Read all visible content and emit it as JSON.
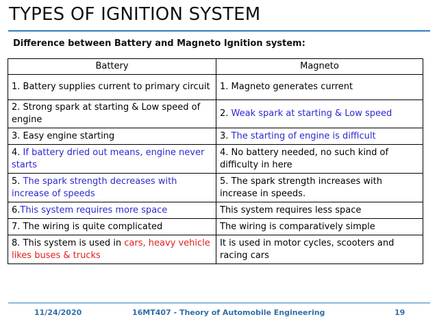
{
  "slide": {
    "title": "TYPES OF IGNITION SYSTEM",
    "subtitle": "Difference between Battery and Magneto Ignition system:"
  },
  "table": {
    "headers": [
      "Battery",
      "Magneto"
    ],
    "rows": [
      {
        "battery": [
          {
            "text": "1. Battery supplies current to primary circuit"
          }
        ],
        "magneto": [
          {
            "text": "1. Magneto generates current"
          }
        ]
      },
      {
        "battery": [
          {
            "text": "2. Strong spark at starting & Low speed of engine"
          }
        ],
        "magneto": [
          {
            "text": "2. "
          },
          {
            "text": "Weak spark at starting & Low speed",
            "color": "blue"
          }
        ]
      },
      {
        "battery": [
          {
            "text": "3. Easy engine starting"
          }
        ],
        "magneto": [
          {
            "text": "3. "
          },
          {
            "text": "The starting of engine is difficult",
            "color": "blue"
          }
        ]
      },
      {
        "battery": [
          {
            "text": "4. "
          },
          {
            "text": "If battery dried out means, engine never starts",
            "color": "blue"
          }
        ],
        "magneto": [
          {
            "text": "4. No battery needed, no such kind of difficulty in here"
          }
        ]
      },
      {
        "battery": [
          {
            "text": "5. "
          },
          {
            "text": "The spark strength decreases with increase of speeds",
            "color": "blue"
          }
        ],
        "magneto": [
          {
            "text": "5. The spark strength increases with increase in speeds."
          }
        ]
      },
      {
        "battery": [
          {
            "text": "6."
          },
          {
            "text": "This system requires more space",
            "color": "blue"
          }
        ],
        "magneto": [
          {
            "text": "This system requires less space"
          }
        ]
      },
      {
        "battery": [
          {
            "text": "7. The wiring is quite complicated"
          }
        ],
        "magneto": [
          {
            "text": "The wiring is comparatively simple"
          }
        ]
      },
      {
        "battery": [
          {
            "text": "8. This system is used in "
          },
          {
            "text": "cars, heavy vehicle likes buses & trucks",
            "color": "red"
          }
        ],
        "magneto": [
          {
            "text": "It is used in motor cycles, scooters and racing cars"
          }
        ]
      }
    ]
  },
  "footer": {
    "date": "11/24/2020",
    "course": "16MT407 - Theory of Automobile Engineering",
    "page": "19"
  },
  "colors": {
    "accent": "#2f7fbf",
    "footer_text": "#2f6fa8",
    "highlight_blue": "#2a2ad0",
    "highlight_red": "#e0201b"
  }
}
